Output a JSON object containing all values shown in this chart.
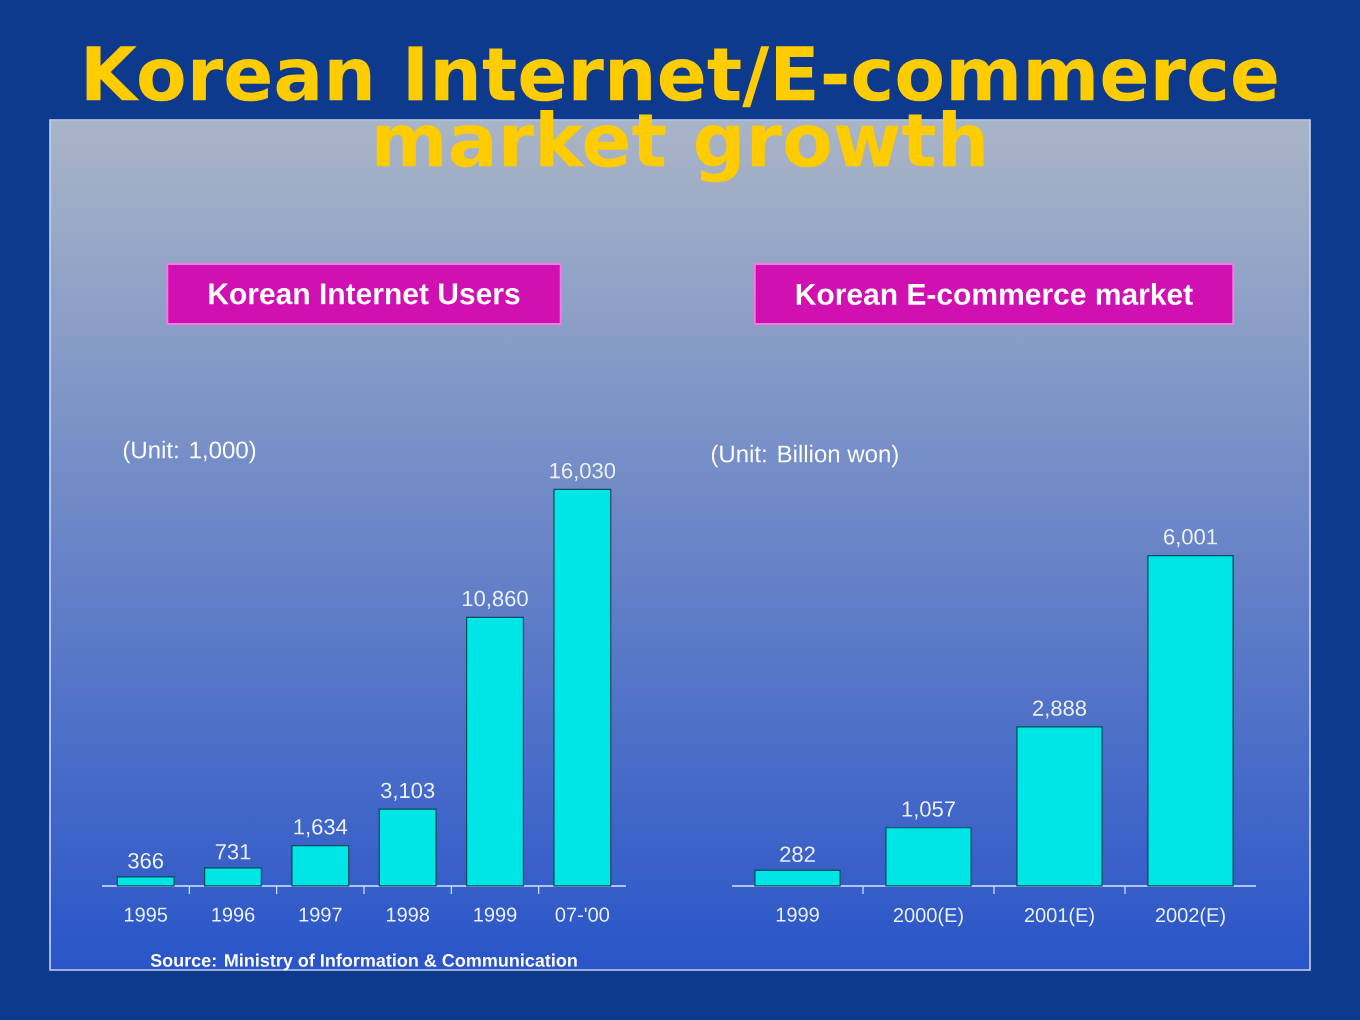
{
  "chart_data": [
    {
      "type": "other",
      "title": "Korean Internet/E-commerce market growth"
    },
    {
      "type": "bar",
      "title": "Korean Internet Users",
      "ylabel": "(Unit: 1,000)",
      "categories": [
        "1995",
        "1996",
        "1997",
        "1998",
        "1999",
        "07-'00"
      ],
      "values": [
        366,
        731,
        1634,
        3103,
        10860,
        16030
      ],
      "value_labels": [
        "366",
        "731",
        "1,634",
        "3,103",
        "10,860",
        "16,030"
      ],
      "color": "#00e5e5",
      "tick_labels": "x",
      "annotations": [
        "Source: Ministry of Information & Communication"
      ]
    },
    {
      "type": "bar",
      "title": "Korean E-commerce market",
      "ylabel": "(Unit: Billion won)",
      "categories": [
        "1999",
        "2000(E)",
        "2001(E)",
        "2002(E)"
      ],
      "values": [
        282,
        1057,
        2888,
        6001
      ],
      "value_labels": [
        "282",
        "1,057",
        "2,888",
        "6,001"
      ],
      "color": "#00e5e5",
      "tick_labels": "x"
    }
  ]
}
